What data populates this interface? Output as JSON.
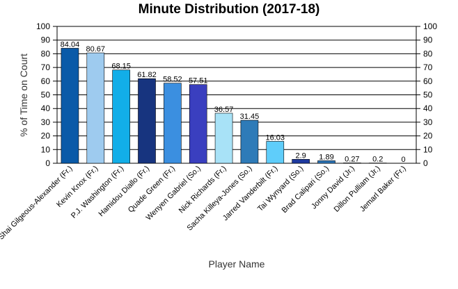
{
  "chart_data": {
    "type": "bar",
    "title": "Minute Distribution (2017-18)",
    "xlabel": "Player Name",
    "ylabel": "% of Time on Court",
    "ylim": [
      0,
      100
    ],
    "yticks": [
      0,
      10,
      20,
      30,
      40,
      50,
      60,
      70,
      80,
      90,
      100
    ],
    "grid": true,
    "right_axis": true,
    "categories": [
      "Shai Gilgeous-Alexander (Fr.)",
      "Kevin Knox (Fr.)",
      "P.J. Washington (Fr.)",
      "Hamidou Diallo (Fr.)",
      "Quade Green (Fr.)",
      "Wenyen Gabriel (So.)",
      "Nick Richards (Fr.)",
      "Sacha Killeya-Jones (So.)",
      "Jarred Vanderbilt (Fr.)",
      "Tai Wynyard (So.)",
      "Brad Calipari (So.)",
      "Jonny David (Jr.)",
      "Dillon Pulliam (Jr.)",
      "Jemarl Baker (Fr.)"
    ],
    "values": [
      84.04,
      80.67,
      68.15,
      61.82,
      58.52,
      57.51,
      36.57,
      31.45,
      16.03,
      2.9,
      1.89,
      0.27,
      0.2,
      0
    ],
    "value_labels": [
      "84.04",
      "80.67",
      "68.15",
      "61.82",
      "58.52",
      "57.51",
      "36.57",
      "31.45",
      "16.03",
      "2.9",
      "1.89",
      "0.27",
      "0.2",
      "0"
    ],
    "colors": [
      "#0a5aa8",
      "#9ecbef",
      "#12aee8",
      "#17347f",
      "#3b8fe0",
      "#3a3fbf",
      "#a8e2f7",
      "#2e7bb8",
      "#5fcdfa",
      "#1f3aa0",
      "#2f78bb",
      "#3060b0",
      "#2a50a8",
      "#2a50a8"
    ]
  }
}
